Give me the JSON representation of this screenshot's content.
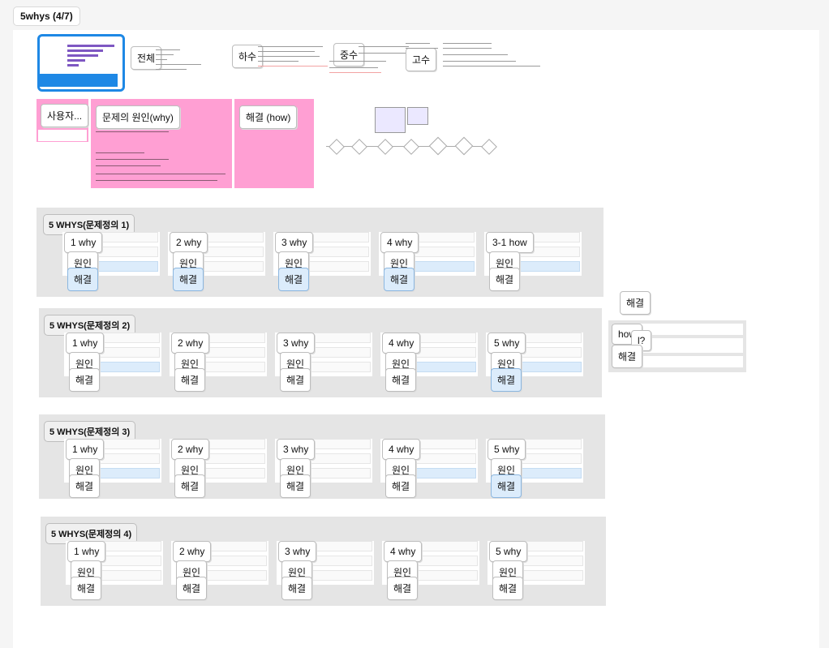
{
  "frame": {
    "title": "5whys (4/7)"
  },
  "top": {
    "labels": [
      "전체",
      "하수",
      "중수",
      "고수"
    ]
  },
  "pink": {
    "user_label": "사용자...",
    "cause_label": "문제의 원인(why)",
    "how_label": "해결 (how)"
  },
  "common": {
    "cause": "원인",
    "solve": "해결"
  },
  "sections": [
    {
      "title": "5 WHYS(문제정의 1)",
      "steps": [
        "1 why",
        "2 why",
        "3 why",
        "4 why",
        "3-1 how"
      ]
    },
    {
      "title": "5 WHYS(문제정의 2)",
      "steps": [
        "1 why",
        "2 why",
        "3 why",
        "4 why",
        "5 why"
      ]
    },
    {
      "title": "5 WHYS(문제정의 3)",
      "steps": [
        "1 why",
        "2 why",
        "3 why",
        "4 why",
        "5 why"
      ]
    },
    {
      "title": "5 WHYS(문제정의 4)",
      "steps": [
        "1 why",
        "2 why",
        "3 why",
        "4 why",
        "5 why"
      ]
    }
  ],
  "side": {
    "solve": "해결",
    "how": "how",
    "q": "l?"
  }
}
